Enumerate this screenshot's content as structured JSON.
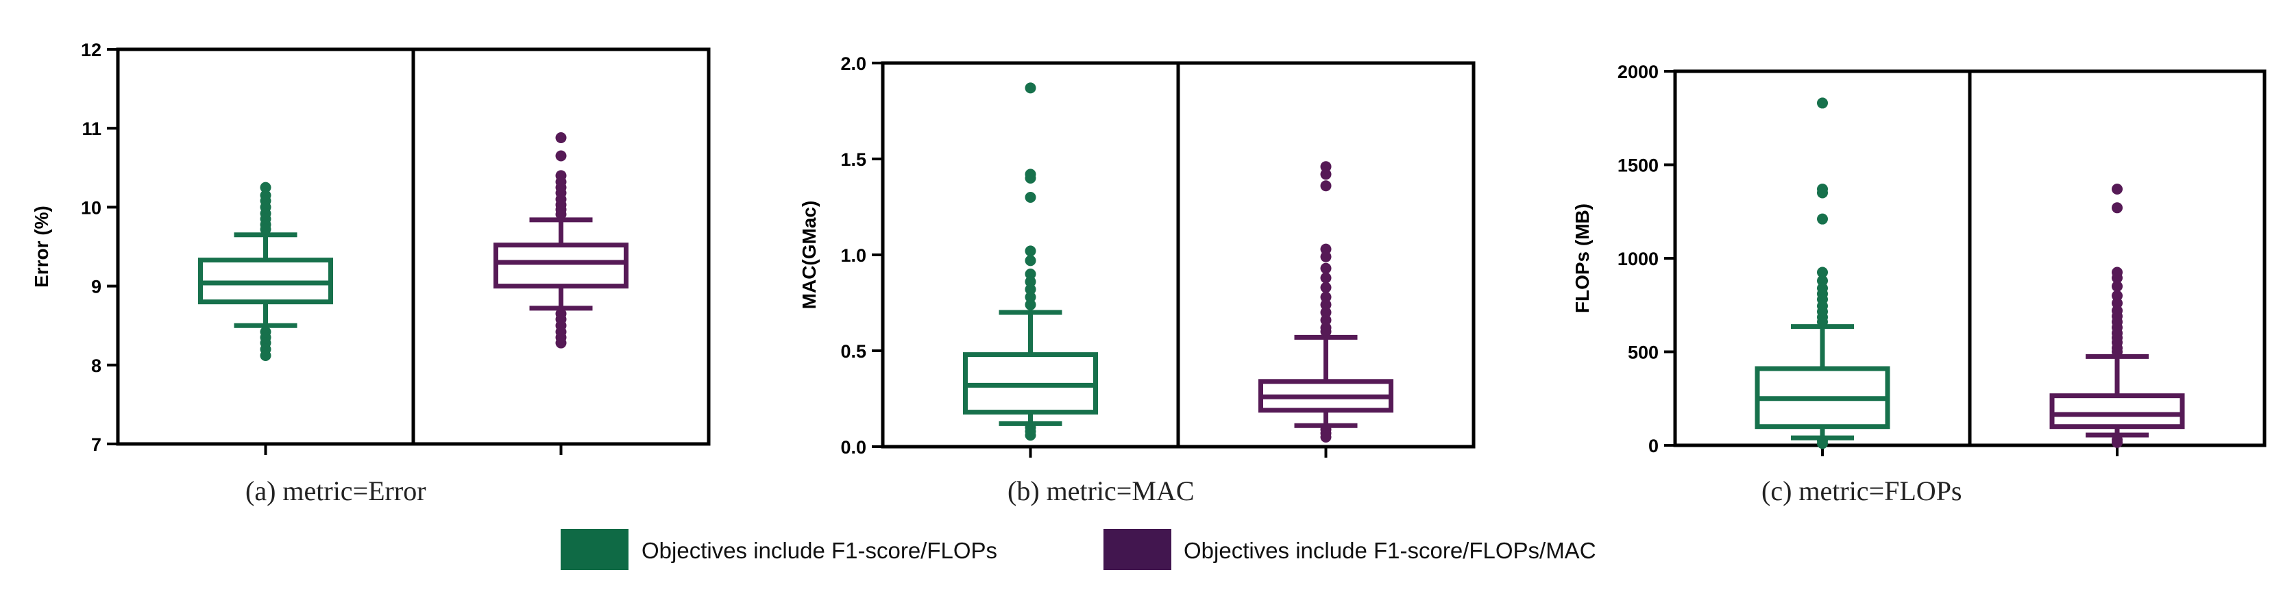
{
  "colors": {
    "series_a": "#17714c",
    "series_b": "#561a56",
    "legend_a": "#0f6a45",
    "legend_b": "#42164f",
    "axis": "#000000"
  },
  "legend": {
    "entries": [
      "Objectives include F1-score/FLOPs",
      "Objectives include F1-score/FLOPs/MAC"
    ]
  },
  "chart_data": [
    {
      "type": "box",
      "caption": "(a)  metric=Error",
      "ylabel": "Error (%)",
      "ylim": [
        7,
        12
      ],
      "yticks": [
        7,
        8,
        9,
        10,
        11,
        12
      ],
      "ytick_labels": [
        "7",
        "8",
        "9",
        "10",
        "11",
        "12"
      ],
      "series": [
        {
          "name": "Objectives include F1-score/FLOPs",
          "whisker_low": 8.5,
          "q1": 8.8,
          "median": 9.04,
          "q3": 9.33,
          "whisker_high": 9.65,
          "outliers": [
            10.25,
            10.15,
            10.08,
            10.0,
            9.92,
            9.85,
            9.78,
            9.72,
            8.42,
            8.35,
            8.28,
            8.2,
            8.12
          ]
        },
        {
          "name": "Objectives include F1-score/FLOPs/MAC",
          "whisker_low": 8.72,
          "q1": 9.0,
          "median": 9.3,
          "q3": 9.52,
          "whisker_high": 9.84,
          "outliers": [
            10.88,
            10.65,
            10.4,
            10.32,
            10.25,
            10.18,
            10.1,
            10.03,
            9.97,
            9.91,
            8.65,
            8.58,
            8.5,
            8.42,
            8.35,
            8.28
          ]
        }
      ]
    },
    {
      "type": "box",
      "caption": "(b)  metric=MAC",
      "ylabel": "MAC(GMac)",
      "ylim": [
        0.0,
        2.0
      ],
      "yticks": [
        0.0,
        0.5,
        1.0,
        1.5,
        2.0
      ],
      "ytick_labels": [
        "0.0",
        "0.5",
        "1.0",
        "1.5",
        "2.0"
      ],
      "series": [
        {
          "name": "Objectives include F1-score/FLOPs",
          "whisker_low": 0.12,
          "q1": 0.18,
          "median": 0.32,
          "q3": 0.48,
          "whisker_high": 0.7,
          "outliers": [
            1.87,
            1.42,
            1.4,
            1.3,
            1.02,
            0.97,
            0.9,
            0.86,
            0.82,
            0.78,
            0.74,
            0.1,
            0.08,
            0.06
          ]
        },
        {
          "name": "Objectives include F1-score/FLOPs/MAC",
          "whisker_low": 0.11,
          "q1": 0.19,
          "median": 0.26,
          "q3": 0.34,
          "whisker_high": 0.57,
          "outliers": [
            1.46,
            1.42,
            1.36,
            1.03,
            0.99,
            0.93,
            0.88,
            0.83,
            0.78,
            0.74,
            0.7,
            0.66,
            0.62,
            0.6,
            0.09,
            0.07,
            0.05
          ]
        }
      ]
    },
    {
      "type": "box",
      "caption": "(c)  metric=FLOPs",
      "ylabel": "FLOPs (MB)",
      "ylim": [
        0,
        2000
      ],
      "yticks": [
        0,
        500,
        1000,
        1500,
        2000
      ],
      "ytick_labels": [
        "0",
        "500",
        "1000",
        "1500",
        "2000"
      ],
      "series": [
        {
          "name": "Objectives include F1-score/FLOPs",
          "whisker_low": 40,
          "q1": 100,
          "median": 250,
          "q3": 410,
          "whisker_high": 635,
          "outliers": [
            1830,
            1370,
            1350,
            1210,
            925,
            880,
            840,
            810,
            780,
            745,
            715,
            685,
            660,
            25,
            10
          ]
        },
        {
          "name": "Objectives include F1-score/FLOPs/MAC",
          "whisker_low": 55,
          "q1": 100,
          "median": 165,
          "q3": 265,
          "whisker_high": 475,
          "outliers": [
            1370,
            1270,
            925,
            895,
            850,
            800,
            760,
            720,
            690,
            660,
            630,
            600,
            575,
            550,
            520,
            500,
            30,
            15
          ]
        }
      ]
    }
  ]
}
